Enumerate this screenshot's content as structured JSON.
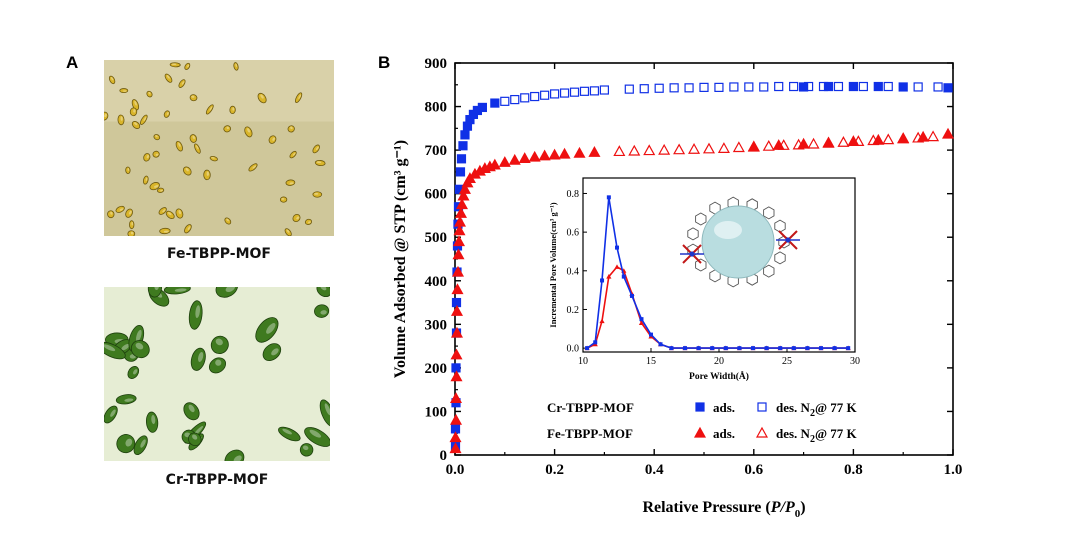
{
  "panel_a": {
    "letter": "A",
    "photos": [
      {
        "caption": "Fe-TBPP-MOF",
        "bg": "#cfc79a",
        "crystal": "#d9b52a"
      },
      {
        "caption": "Cr-TBPP-MOF",
        "bg": "#dde7c6",
        "crystal": "#3f7a1f"
      }
    ]
  },
  "panel_b": {
    "letter": "B"
  },
  "chart_data": [
    {
      "type": "scatter",
      "xlabel_main": "Relative Pressure",
      "xlabel_sym": "P/P",
      "xlabel_sub": "0",
      "ylabel": "Volume Adsorbed @ STP (cm³ g⁻¹)",
      "xlim": [
        0,
        1.0
      ],
      "ylim": [
        0,
        900
      ],
      "xticks": [
        "0.0",
        "0.2",
        "0.4",
        "0.6",
        "0.8",
        "1.0"
      ],
      "yticks": [
        "0",
        "100",
        "200",
        "300",
        "400",
        "500",
        "600",
        "700",
        "800",
        "900"
      ],
      "series": [
        {
          "name": "Cr-TBPP-MOF",
          "color": "#1030e6",
          "marker": "square",
          "ads_label": "ads.",
          "des_label": "des. N",
          "des_sub": "2",
          "des_suffix": "@ 77 K",
          "ads": [
            [
              0.001,
              20
            ],
            [
              0.001,
              60
            ],
            [
              0.002,
              120
            ],
            [
              0.002,
              200
            ],
            [
              0.003,
              280
            ],
            [
              0.003,
              350
            ],
            [
              0.004,
              420
            ],
            [
              0.005,
              480
            ],
            [
              0.006,
              530
            ],
            [
              0.007,
              570
            ],
            [
              0.009,
              610
            ],
            [
              0.011,
              650
            ],
            [
              0.013,
              680
            ],
            [
              0.016,
              710
            ],
            [
              0.02,
              735
            ],
            [
              0.025,
              755
            ],
            [
              0.03,
              770
            ],
            [
              0.037,
              782
            ],
            [
              0.045,
              791
            ],
            [
              0.055,
              798
            ],
            [
              0.08,
              808
            ],
            [
              0.7,
              845
            ],
            [
              0.75,
              846
            ],
            [
              0.8,
              846
            ],
            [
              0.85,
              846
            ],
            [
              0.9,
              845
            ],
            [
              0.99,
              843
            ]
          ],
          "des": [
            [
              0.1,
              812
            ],
            [
              0.12,
              816
            ],
            [
              0.14,
              820
            ],
            [
              0.16,
              823
            ],
            [
              0.18,
              826
            ],
            [
              0.2,
              829
            ],
            [
              0.22,
              831
            ],
            [
              0.24,
              833
            ],
            [
              0.26,
              835
            ],
            [
              0.28,
              836
            ],
            [
              0.3,
              838
            ],
            [
              0.35,
              840
            ],
            [
              0.38,
              841
            ],
            [
              0.41,
              842
            ],
            [
              0.44,
              843
            ],
            [
              0.47,
              843
            ],
            [
              0.5,
              844
            ],
            [
              0.53,
              844
            ],
            [
              0.56,
              845
            ],
            [
              0.59,
              845
            ],
            [
              0.62,
              845
            ],
            [
              0.65,
              846
            ],
            [
              0.68,
              846
            ],
            [
              0.71,
              846
            ],
            [
              0.74,
              846
            ],
            [
              0.77,
              846
            ],
            [
              0.82,
              846
            ],
            [
              0.87,
              846
            ],
            [
              0.93,
              845
            ],
            [
              0.97,
              845
            ]
          ]
        },
        {
          "name": "Fe-TBPP-MOF",
          "color": "#ee1010",
          "marker": "triangle",
          "ads_label": "ads.",
          "des_label": "des. N",
          "des_sub": "2",
          "des_suffix": "@ 77 K",
          "ads": [
            [
              0.001,
              15
            ],
            [
              0.001,
              40
            ],
            [
              0.002,
              80
            ],
            [
              0.002,
              130
            ],
            [
              0.003,
              180
            ],
            [
              0.003,
              230
            ],
            [
              0.004,
              280
            ],
            [
              0.004,
              330
            ],
            [
              0.005,
              380
            ],
            [
              0.006,
              420
            ],
            [
              0.007,
              460
            ],
            [
              0.008,
              490
            ],
            [
              0.009,
              515
            ],
            [
              0.01,
              535
            ],
            [
              0.012,
              555
            ],
            [
              0.014,
              575
            ],
            [
              0.017,
              595
            ],
            [
              0.02,
              610
            ],
            [
              0.025,
              625
            ],
            [
              0.03,
              635
            ],
            [
              0.04,
              645
            ],
            [
              0.05,
              652
            ],
            [
              0.06,
              658
            ],
            [
              0.07,
              662
            ],
            [
              0.08,
              666
            ],
            [
              0.1,
              672
            ],
            [
              0.12,
              677
            ],
            [
              0.14,
              681
            ],
            [
              0.16,
              684
            ],
            [
              0.18,
              687
            ],
            [
              0.2,
              689
            ],
            [
              0.22,
              691
            ],
            [
              0.25,
              693
            ],
            [
              0.28,
              695
            ],
            [
              0.6,
              708
            ],
            [
              0.65,
              711
            ],
            [
              0.7,
              714
            ],
            [
              0.75,
              717
            ],
            [
              0.8,
              720
            ],
            [
              0.85,
              723
            ],
            [
              0.9,
              727
            ],
            [
              0.94,
              730
            ],
            [
              0.99,
              737
            ]
          ],
          "des": [
            [
              0.33,
              697
            ],
            [
              0.36,
              698
            ],
            [
              0.39,
              699
            ],
            [
              0.42,
              700
            ],
            [
              0.45,
              701
            ],
            [
              0.48,
              702
            ],
            [
              0.51,
              703
            ],
            [
              0.54,
              704
            ],
            [
              0.57,
              706
            ],
            [
              0.6,
              707
            ],
            [
              0.63,
              709
            ],
            [
              0.66,
              711
            ],
            [
              0.69,
              712
            ],
            [
              0.72,
              714
            ],
            [
              0.75,
              716
            ],
            [
              0.78,
              718
            ],
            [
              0.81,
              720
            ],
            [
              0.84,
              722
            ],
            [
              0.87,
              724
            ],
            [
              0.9,
              726
            ],
            [
              0.93,
              728
            ],
            [
              0.96,
              731
            ]
          ]
        }
      ]
    },
    {
      "type": "line",
      "xlabel": "Pore Width(Å)",
      "ylabel": "Incremental Pore Volume(cm³ g⁻¹)",
      "xlim": [
        10,
        30
      ],
      "ylim": [
        -0.02,
        0.88
      ],
      "xticks": [
        "10",
        "15",
        "20",
        "25",
        "30"
      ],
      "yticks": [
        "0.0",
        "0.2",
        "0.4",
        "0.6",
        "0.8"
      ],
      "series": [
        {
          "name": "Cr-TBPP-MOF",
          "color": "#1030e6",
          "x": [
            10.3,
            10.9,
            11.4,
            11.9,
            12.5,
            13.0,
            13.6,
            14.3,
            15.0,
            15.7,
            16.5,
            17.5,
            18.5,
            19.5,
            20.5,
            21.5,
            22.5,
            23.5,
            24.5,
            25.5,
            26.5,
            27.5,
            28.5,
            29.5
          ],
          "y": [
            0.0,
            0.03,
            0.35,
            0.78,
            0.52,
            0.37,
            0.27,
            0.15,
            0.07,
            0.02,
            0.0,
            0.0,
            0.0,
            0.0,
            0.0,
            0.0,
            0.0,
            0.0,
            0.0,
            0.0,
            0.0,
            0.0,
            0.0,
            0.0
          ]
        },
        {
          "name": "Fe-TBPP-MOF",
          "color": "#ee1010",
          "x": [
            10.3,
            10.9,
            11.4,
            11.9,
            12.5,
            13.0,
            13.6,
            14.3,
            15.0,
            15.7,
            16.5,
            17.5,
            18.5,
            19.5,
            20.5,
            21.5,
            22.5,
            23.5,
            24.5,
            25.5,
            26.5,
            27.5,
            28.5,
            29.5
          ],
          "y": [
            0.0,
            0.02,
            0.14,
            0.37,
            0.42,
            0.4,
            0.28,
            0.13,
            0.06,
            0.02,
            0.0,
            0.0,
            0.0,
            0.0,
            0.0,
            0.0,
            0.0,
            0.0,
            0.0,
            0.0,
            0.0,
            0.0,
            0.0,
            0.0
          ]
        }
      ]
    }
  ]
}
